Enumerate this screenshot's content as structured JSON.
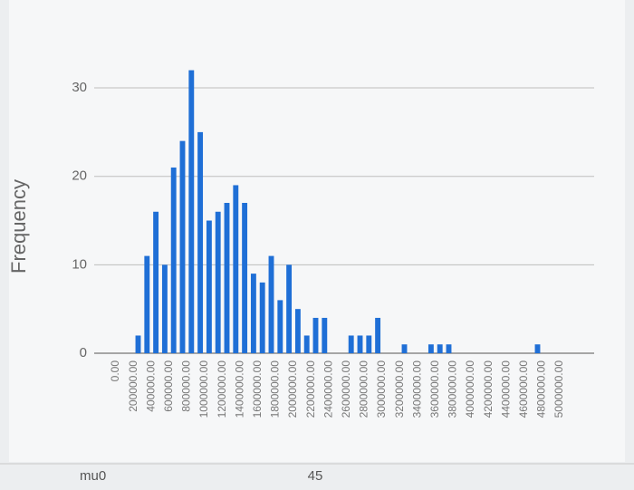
{
  "chart_data": {
    "type": "histogram",
    "y_label": "Frequency",
    "color": "#1f6fd6",
    "grid": true,
    "bins": [
      0,
      100000,
      200000,
      300000,
      400000,
      500000,
      600000,
      700000,
      800000,
      900000,
      1000000,
      1100000,
      1200000,
      1300000,
      1400000,
      1500000,
      1600000,
      1700000,
      1800000,
      1900000,
      2000000,
      2100000,
      2200000,
      2300000,
      2400000,
      2500000,
      2600000,
      2700000,
      2800000,
      2900000,
      3000000,
      3100000,
      3200000,
      3300000,
      3400000,
      3500000,
      3600000,
      3700000,
      3800000,
      3900000,
      4000000,
      4100000,
      4200000,
      4300000,
      4400000,
      4500000,
      4600000,
      4700000,
      4800000,
      4900000,
      5000000
    ],
    "counts": [
      0,
      0,
      2,
      11,
      16,
      10,
      21,
      24,
      32,
      25,
      15,
      16,
      17,
      19,
      17,
      9,
      8,
      11,
      6,
      10,
      5,
      2,
      4,
      4,
      0,
      0,
      2,
      2,
      2,
      4,
      0,
      0,
      1,
      0,
      0,
      1,
      1,
      1,
      0,
      0,
      0,
      0,
      0,
      0,
      0,
      0,
      0,
      1,
      0,
      0
    ],
    "xlim": [
      0,
      5000000
    ],
    "ylim": [
      0,
      34
    ],
    "yticks": [
      0,
      10,
      20,
      30
    ],
    "xticks": [
      {
        "value": 0,
        "label": "0.00"
      },
      {
        "value": 200000,
        "label": "200000.00"
      },
      {
        "value": 400000,
        "label": "400000.00"
      },
      {
        "value": 600000,
        "label": "600000.00"
      },
      {
        "value": 800000,
        "label": "800000.00"
      },
      {
        "value": 1000000,
        "label": "1000000.00"
      },
      {
        "value": 1200000,
        "label": "1200000.00"
      },
      {
        "value": 1400000,
        "label": "1400000.00"
      },
      {
        "value": 1600000,
        "label": "1600000.00"
      },
      {
        "value": 1800000,
        "label": "1800000.00"
      },
      {
        "value": 2000000,
        "label": "2000000.00"
      },
      {
        "value": 2200000,
        "label": "2200000.00"
      },
      {
        "value": 2400000,
        "label": "2400000.00"
      },
      {
        "value": 2600000,
        "label": "2600000.00"
      },
      {
        "value": 2800000,
        "label": "2800000.00"
      },
      {
        "value": 3000000,
        "label": "3000000.00"
      },
      {
        "value": 3200000,
        "label": "3200000.00"
      },
      {
        "value": 3400000,
        "label": "3400000.00"
      },
      {
        "value": 3600000,
        "label": "3600000.00"
      },
      {
        "value": 3800000,
        "label": "3800000.00"
      },
      {
        "value": 4000000,
        "label": "4000000.00"
      },
      {
        "value": 4200000,
        "label": "4200000.00"
      },
      {
        "value": 4400000,
        "label": "4400000.00"
      },
      {
        "value": 4600000,
        "label": "4600000.00"
      },
      {
        "value": 4800000,
        "label": "4800000.00"
      },
      {
        "value": 5000000,
        "label": "5000000.00"
      }
    ]
  },
  "footer": {
    "label": "mu0",
    "value": 45
  }
}
